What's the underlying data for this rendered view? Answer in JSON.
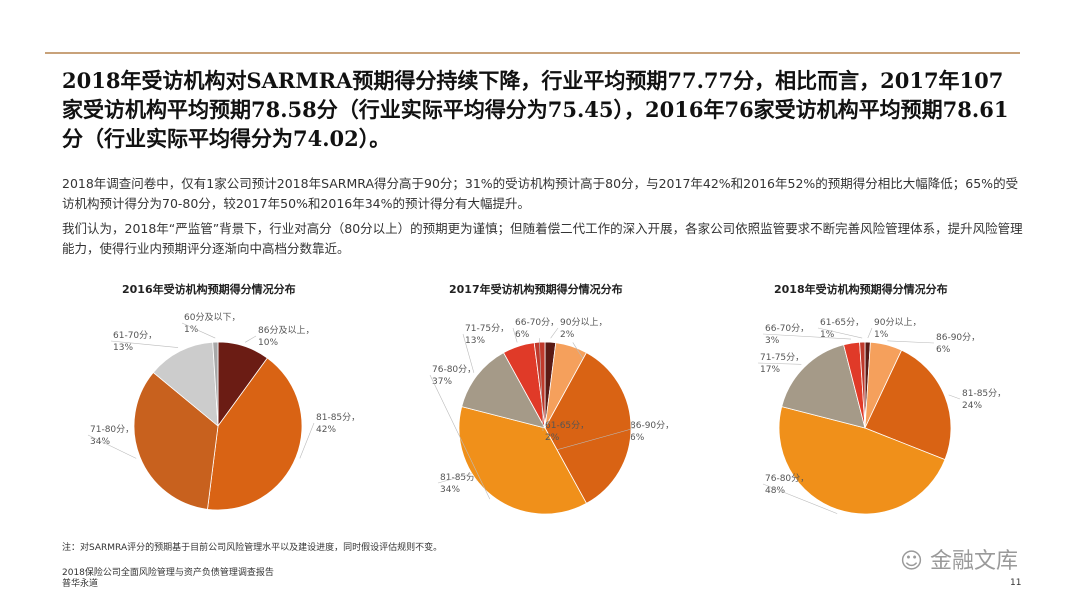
{
  "headline": "2018年受访机构对SARMRA预期得分持续下降，行业平均预期77.77分，相比而言，2017年107家受访机构平均预期78.58分（行业实际平均得分为75.45），2016年76家受访机构平均预期78.61分（行业实际平均得分为74.02）。",
  "body": {
    "p1": "2018年调查问卷中，仅有1家公司预计2018年SARMRA得分高于90分；31%的受访机构预计高于80分，与2017年42%和2016年52%的预期得分相比大幅降低；65%的受访机构预计得分为70-80分，较2017年50%和2016年34%的预计得分有大幅提升。",
    "p2": "我们认为，2018年“严监管”背景下，行业对高分（80分以上）的预期更为谨慎；但随着偿二代工作的深入开展，各家公司依照监管要求不断完善风险管理体系，提升风险管理能力，使得行业内预期评分逐渐向中高档分数靠近。"
  },
  "footnote": "注：对SARMRA评分的预期基于目前公司风险管理水平以及建设进度，同时假设评估规则不变。",
  "report_title": "2018保险公司全面风险管理与资产负债管理调查报告",
  "firm": "普华永道",
  "page_number": "11",
  "watermark": "金融文库",
  "colors": {
    "60分及以下": "#a8a8a8",
    "61-65分": "#c0392b",
    "66-70分": "#e03a28",
    "71-75分": "#a59a88",
    "71-80分": "#c8611e",
    "76-80分": "#f0901a",
    "81-85分": "#d96314",
    "86-90分": "#f5a05c",
    "86分及以上": "#6b1c14",
    "90分以上": "#5a1a14"
  },
  "chart_data": [
    {
      "type": "pie",
      "title": "2016年受访机构预期得分情况分布",
      "slices": [
        {
          "label": "86分及以上",
          "value": 10
        },
        {
          "label": "81-85分",
          "value": 42
        },
        {
          "label": "71-80分",
          "value": 34
        },
        {
          "label": "61-70分",
          "value": 13
        },
        {
          "label": "60分及以下",
          "value": 1
        }
      ]
    },
    {
      "type": "pie",
      "title": "2017年受访机构预期得分情况分布",
      "slices": [
        {
          "label": "90分以上",
          "value": 2
        },
        {
          "label": "86-90分",
          "value": 6
        },
        {
          "label": "81-85分",
          "value": 34
        },
        {
          "label": "76-80分",
          "value": 37
        },
        {
          "label": "71-75分",
          "value": 13
        },
        {
          "label": "66-70分",
          "value": 6
        },
        {
          "label": "61-65分",
          "value": 2
        }
      ]
    },
    {
      "type": "pie",
      "title": "2018年受访机构预期得分情况分布",
      "slices": [
        {
          "label": "90分以上",
          "value": 1
        },
        {
          "label": "86-90分",
          "value": 6
        },
        {
          "label": "81-85分",
          "value": 24
        },
        {
          "label": "76-80分",
          "value": 48
        },
        {
          "label": "71-75分",
          "value": 17
        },
        {
          "label": "66-70分",
          "value": 3
        },
        {
          "label": "61-65分",
          "value": 1
        }
      ]
    }
  ]
}
